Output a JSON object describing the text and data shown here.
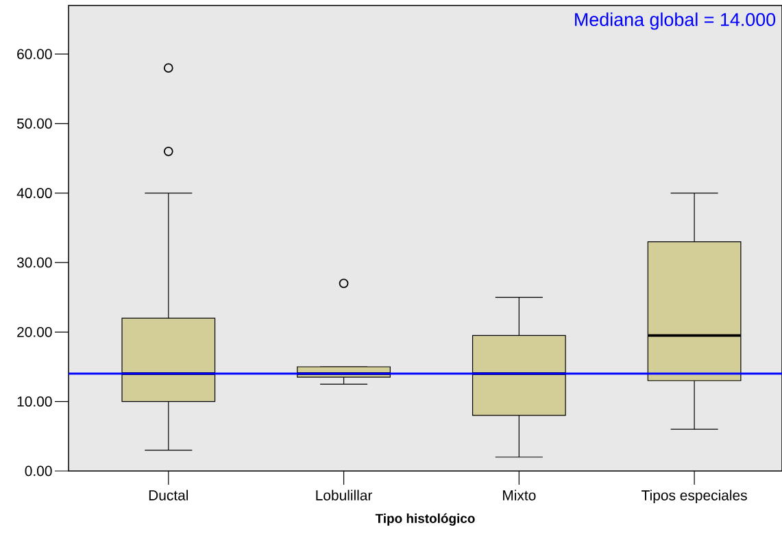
{
  "chart_data": {
    "type": "box",
    "xlabel": "Tipo histológico",
    "categories": [
      "Ductal",
      "Lobulillar",
      "Mixto",
      "Tipos especiales"
    ],
    "boxes": [
      {
        "low": 3,
        "q1": 10,
        "median": 14,
        "q3": 22,
        "high": 40,
        "outliers": [
          46,
          58
        ]
      },
      {
        "low": 12.5,
        "q1": 13.5,
        "median": 14,
        "q3": 15,
        "high": 15,
        "outliers": [
          27
        ]
      },
      {
        "low": 2,
        "q1": 8,
        "median": 14,
        "q3": 19.5,
        "high": 25
      },
      {
        "low": 6,
        "q1": 13,
        "median": 19.5,
        "q3": 33,
        "high": 40
      }
    ],
    "color": "#d3cd98",
    "ylim": [
      0,
      67
    ],
    "yticks": [
      {
        "value": 0,
        "label": "0.00"
      },
      {
        "value": 10,
        "label": "10.00"
      },
      {
        "value": 20,
        "label": "20.00"
      },
      {
        "value": 30,
        "label": "30.00"
      },
      {
        "value": 40,
        "label": "40.00"
      },
      {
        "value": 50,
        "label": "50.00"
      },
      {
        "value": 60,
        "label": "60.00"
      }
    ],
    "ref_lines": [
      {
        "axis": "y",
        "value": 14,
        "label": "Mediana global = 14.000",
        "color": "#0000ff"
      }
    ]
  }
}
